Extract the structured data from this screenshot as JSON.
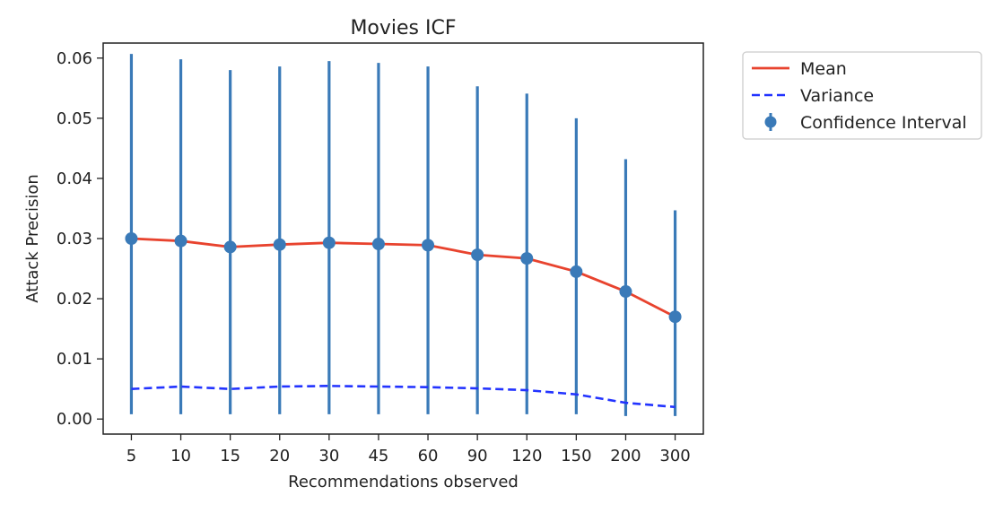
{
  "chart_data": {
    "type": "line",
    "title": "Movies ICF",
    "xlabel": "Recommendations observed",
    "ylabel": "Attack Precision",
    "categories": [
      "5",
      "10",
      "15",
      "20",
      "30",
      "45",
      "60",
      "90",
      "120",
      "150",
      "200",
      "300"
    ],
    "ylim": [
      -0.0025,
      0.0625
    ],
    "yticks": [
      "0.00",
      "0.01",
      "0.02",
      "0.03",
      "0.04",
      "0.05",
      "0.06"
    ],
    "grid": false,
    "legend_position": "outside-top-right",
    "series": [
      {
        "name": "Mean",
        "style": "solid",
        "color": "#e8432e",
        "values": [
          0.03,
          0.0296,
          0.0286,
          0.029,
          0.0293,
          0.0291,
          0.0289,
          0.0273,
          0.0267,
          0.0245,
          0.0212,
          0.017
        ]
      },
      {
        "name": "Variance",
        "style": "dashed",
        "color": "#2233ff",
        "values": [
          0.005,
          0.0054,
          0.005,
          0.0054,
          0.0055,
          0.0054,
          0.0053,
          0.0051,
          0.0048,
          0.0041,
          0.0027,
          0.002
        ]
      },
      {
        "name": "Confidence Interval",
        "style": "errorbar",
        "color": "#3a7ab8",
        "lower": [
          0.0008,
          0.0008,
          0.0008,
          0.0008,
          0.0008,
          0.0008,
          0.0008,
          0.0008,
          0.0008,
          0.0008,
          0.0005,
          0.0005
        ],
        "upper": [
          0.0607,
          0.0598,
          0.058,
          0.0586,
          0.0595,
          0.0592,
          0.0586,
          0.0553,
          0.0541,
          0.05,
          0.0432,
          0.0347
        ]
      }
    ]
  }
}
